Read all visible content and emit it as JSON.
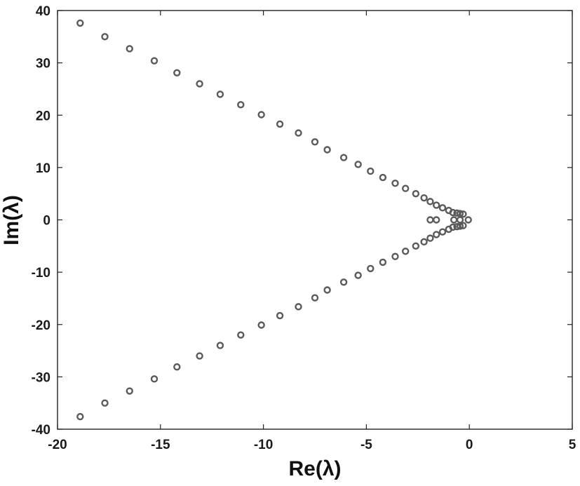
{
  "chart_data": {
    "type": "scatter",
    "title": "",
    "xlabel": "Re(λ)",
    "ylabel": "Im(λ)",
    "xlim": [
      -20,
      5
    ],
    "ylim": [
      -40,
      40
    ],
    "x_ticks": [
      -20,
      -15,
      -10,
      -5,
      0,
      5
    ],
    "y_ticks": [
      40,
      30,
      20,
      10,
      0,
      -10,
      -20,
      -30,
      -40
    ],
    "x_tick_labels": [
      "-20",
      "-15",
      "-10",
      "-5",
      "0",
      "5"
    ],
    "y_tick_labels": [
      "40",
      "30",
      "20",
      "10",
      "0",
      "-10",
      "-20",
      "-30",
      "-40"
    ],
    "grid": false,
    "marker": "circle",
    "marker_color": "#5a5a5a",
    "series": [
      {
        "points": [
          [
            -18.9,
            37.6
          ],
          [
            -17.7,
            35.0
          ],
          [
            -16.5,
            32.7
          ],
          [
            -15.3,
            30.4
          ],
          [
            -14.2,
            28.1
          ],
          [
            -13.1,
            26.0
          ],
          [
            -12.1,
            24.0
          ],
          [
            -11.1,
            22.0
          ],
          [
            -10.1,
            20.1
          ],
          [
            -9.2,
            18.3
          ],
          [
            -8.3,
            16.6
          ],
          [
            -7.5,
            14.9
          ],
          [
            -6.9,
            13.4
          ],
          [
            -6.1,
            11.9
          ],
          [
            -5.4,
            10.6
          ],
          [
            -4.8,
            9.3
          ],
          [
            -4.2,
            8.1
          ],
          [
            -3.6,
            7.0
          ],
          [
            -3.1,
            6.0
          ],
          [
            -2.6,
            5.0
          ],
          [
            -2.2,
            4.2
          ],
          [
            -1.9,
            3.5
          ],
          [
            -1.6,
            2.8
          ],
          [
            -1.3,
            2.3
          ],
          [
            -1.0,
            1.8
          ],
          [
            -0.8,
            1.4
          ],
          [
            -0.6,
            1.3
          ],
          [
            -0.45,
            1.2
          ],
          [
            -0.3,
            1.1
          ],
          [
            -18.9,
            -37.6
          ],
          [
            -17.7,
            -35.0
          ],
          [
            -16.5,
            -32.7
          ],
          [
            -15.3,
            -30.4
          ],
          [
            -14.2,
            -28.1
          ],
          [
            -13.1,
            -26.0
          ],
          [
            -12.1,
            -24.0
          ],
          [
            -11.1,
            -22.0
          ],
          [
            -10.1,
            -20.1
          ],
          [
            -9.2,
            -18.3
          ],
          [
            -8.3,
            -16.6
          ],
          [
            -7.5,
            -14.9
          ],
          [
            -6.9,
            -13.4
          ],
          [
            -6.1,
            -11.9
          ],
          [
            -5.4,
            -10.6
          ],
          [
            -4.8,
            -9.3
          ],
          [
            -4.2,
            -8.1
          ],
          [
            -3.6,
            -7.0
          ],
          [
            -3.1,
            -6.0
          ],
          [
            -2.6,
            -5.0
          ],
          [
            -2.2,
            -4.2
          ],
          [
            -1.9,
            -3.5
          ],
          [
            -1.6,
            -2.8
          ],
          [
            -1.3,
            -2.3
          ],
          [
            -1.0,
            -1.8
          ],
          [
            -0.8,
            -1.4
          ],
          [
            -0.6,
            -1.3
          ],
          [
            -0.45,
            -1.2
          ],
          [
            -0.3,
            -1.1
          ],
          [
            -1.9,
            0.0
          ],
          [
            -1.6,
            0.0
          ],
          [
            -0.75,
            0.0
          ],
          [
            -0.45,
            0.0
          ],
          [
            -0.05,
            0.0
          ]
        ]
      }
    ]
  }
}
